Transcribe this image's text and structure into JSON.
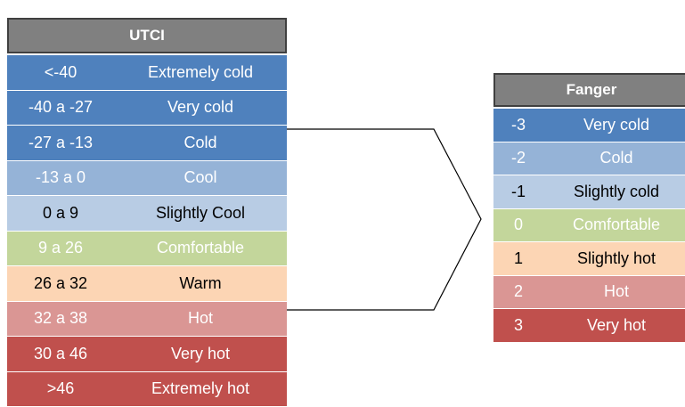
{
  "utci": {
    "header": "UTCI",
    "rows": [
      [
        "<-40",
        "Extremely cold"
      ],
      [
        "-40 a -27",
        "Very cold"
      ],
      [
        "-27 a -13",
        "Cold"
      ],
      [
        "-13 a 0",
        "Cool"
      ],
      [
        "0 a 9",
        "Slightly  Cool"
      ],
      [
        "9 a 26",
        "Comfortable"
      ],
      [
        "26 a 32",
        "Warm"
      ],
      [
        "32 a 38",
        "Hot"
      ],
      [
        "30 a 46",
        "Very hot"
      ],
      [
        ">46",
        "Extremely hot"
      ]
    ]
  },
  "fanger": {
    "header": "Fanger",
    "rows": [
      [
        "-3",
        "Very cold"
      ],
      [
        "-2",
        "Cold"
      ],
      [
        "-1",
        "Slightly cold"
      ],
      [
        "0",
        "Comfortable"
      ],
      [
        "1",
        "Slightly hot"
      ],
      [
        "2",
        "Hot"
      ],
      [
        "3",
        "Very hot"
      ]
    ]
  }
}
